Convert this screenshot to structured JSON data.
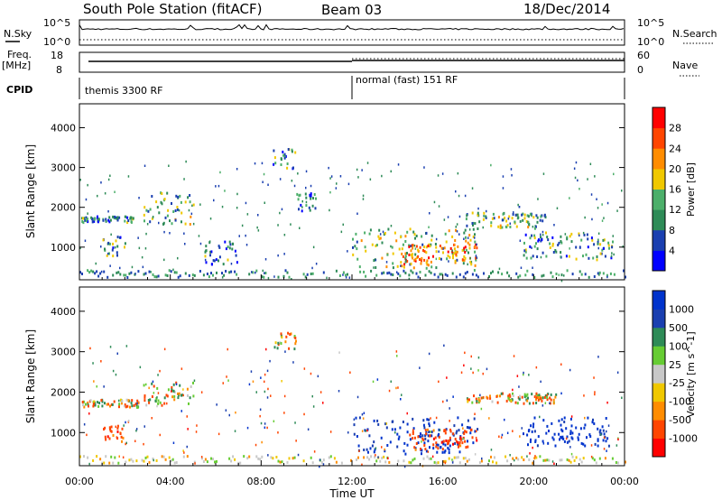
{
  "header": {
    "title": "South Pole Station (fitACF)",
    "beam": "Beam 03",
    "date": "18/Dec/2014"
  },
  "summary": {
    "nsky_label": "N.Sky",
    "nsearch_label": "N.Search",
    "freq_label": "Freq.",
    "freq_unit": "[MHz]",
    "nave_label": "Nave",
    "cpid_label": "CPID",
    "noise_left_ticks": [
      "10^5",
      "10^0"
    ],
    "noise_right_ticks": [
      "10^5",
      "10^0"
    ],
    "freq_ticks": [
      "18",
      "8"
    ],
    "nave_ticks": [
      "60",
      "0"
    ]
  },
  "modes": [
    {
      "label": "themis 3300 RF",
      "start_hour": 0
    },
    {
      "label": "normal (fast) 151 RF",
      "start_hour": 12
    }
  ],
  "colors": {
    "power": [
      "#0000ff",
      "#1a3fb0",
      "#2e8b57",
      "#4caf6a",
      "#f0c800",
      "#ff8c00",
      "#ff4500",
      "#ff0000"
    ],
    "velocity": [
      "#ff0000",
      "#ff4500",
      "#ff8c00",
      "#f0c800",
      "#c8c8c8",
      "#66cc33",
      "#2e8b57",
      "#1a3fb0",
      "#0033cc"
    ]
  },
  "chart_data": [
    {
      "type": "heatmap",
      "title": "",
      "xlabel": "Time UT",
      "ylabel": "Slant Range [km]",
      "x_ticks": [
        "00:00",
        "04:00",
        "08:00",
        "12:00",
        "16:00",
        "20:00",
        "00:00"
      ],
      "xlim_hours": [
        0,
        24
      ],
      "ylim": [
        180,
        4600
      ],
      "y_ticks": [
        1000,
        2000,
        3000,
        4000
      ],
      "colorbar": {
        "label": "Power [dB]",
        "ticks": [
          "28",
          "24",
          "20",
          "16",
          "12",
          "8",
          "4"
        ],
        "range": [
          0,
          30
        ]
      },
      "regions": [
        {
          "t0": 0.0,
          "t1": 2.6,
          "r0": 1650,
          "r1": 1800,
          "v": 8
        },
        {
          "t0": 1.0,
          "t1": 2.0,
          "r0": 800,
          "r1": 1300,
          "v": 10
        },
        {
          "t0": 2.8,
          "t1": 5.0,
          "r0": 1600,
          "r1": 2400,
          "v": 12
        },
        {
          "t0": 5.5,
          "t1": 7.0,
          "r0": 600,
          "r1": 1200,
          "v": 8
        },
        {
          "t0": 8.5,
          "t1": 9.5,
          "r0": 3000,
          "r1": 3500,
          "v": 10
        },
        {
          "t0": 9.5,
          "t1": 10.5,
          "r0": 1900,
          "r1": 2400,
          "v": 8
        },
        {
          "t0": 12.0,
          "t1": 17.5,
          "r0": 500,
          "r1": 1500,
          "v": 14
        },
        {
          "t0": 14.0,
          "t1": 17.5,
          "r0": 600,
          "r1": 1100,
          "v": 22
        },
        {
          "t0": 17.0,
          "t1": 20.5,
          "r0": 1500,
          "r1": 1900,
          "v": 12
        },
        {
          "t0": 19.5,
          "t1": 23.5,
          "r0": 700,
          "r1": 1400,
          "v": 10
        }
      ]
    },
    {
      "type": "heatmap",
      "title": "",
      "xlabel": "Time UT",
      "ylabel": "Slant Range [km]",
      "x_ticks": [
        "00:00",
        "04:00",
        "08:00",
        "12:00",
        "16:00",
        "20:00",
        "00:00"
      ],
      "xlim_hours": [
        0,
        24
      ],
      "ylim": [
        180,
        4600
      ],
      "y_ticks": [
        1000,
        2000,
        3000,
        4000
      ],
      "colorbar": {
        "label": "Velocity [m s^-1]",
        "ticks": [
          "1000",
          "500",
          "100",
          "25",
          "-25",
          "-100",
          "-500",
          "-1000"
        ],
        "range": [
          -1000,
          1000
        ]
      },
      "regions": [
        {
          "t0": 0.0,
          "t1": 2.6,
          "r0": 1650,
          "r1": 1850,
          "v": 0
        },
        {
          "t0": 1.0,
          "t1": 2.0,
          "r0": 800,
          "r1": 1300,
          "v": -300
        },
        {
          "t0": 2.8,
          "t1": 5.0,
          "r0": 1700,
          "r1": 2300,
          "v": 0
        },
        {
          "t0": 8.5,
          "t1": 9.5,
          "r0": 3100,
          "r1": 3500,
          "v": 0
        },
        {
          "t0": 12.0,
          "t1": 17.5,
          "r0": 500,
          "r1": 1400,
          "v": 600
        },
        {
          "t0": 14.5,
          "t1": 17.5,
          "r0": 600,
          "r1": 1100,
          "v": -300
        },
        {
          "t0": 17.0,
          "t1": 21.0,
          "r0": 1750,
          "r1": 2000,
          "v": 0
        },
        {
          "t0": 19.5,
          "t1": 23.5,
          "r0": 700,
          "r1": 1400,
          "v": 700
        }
      ]
    }
  ]
}
